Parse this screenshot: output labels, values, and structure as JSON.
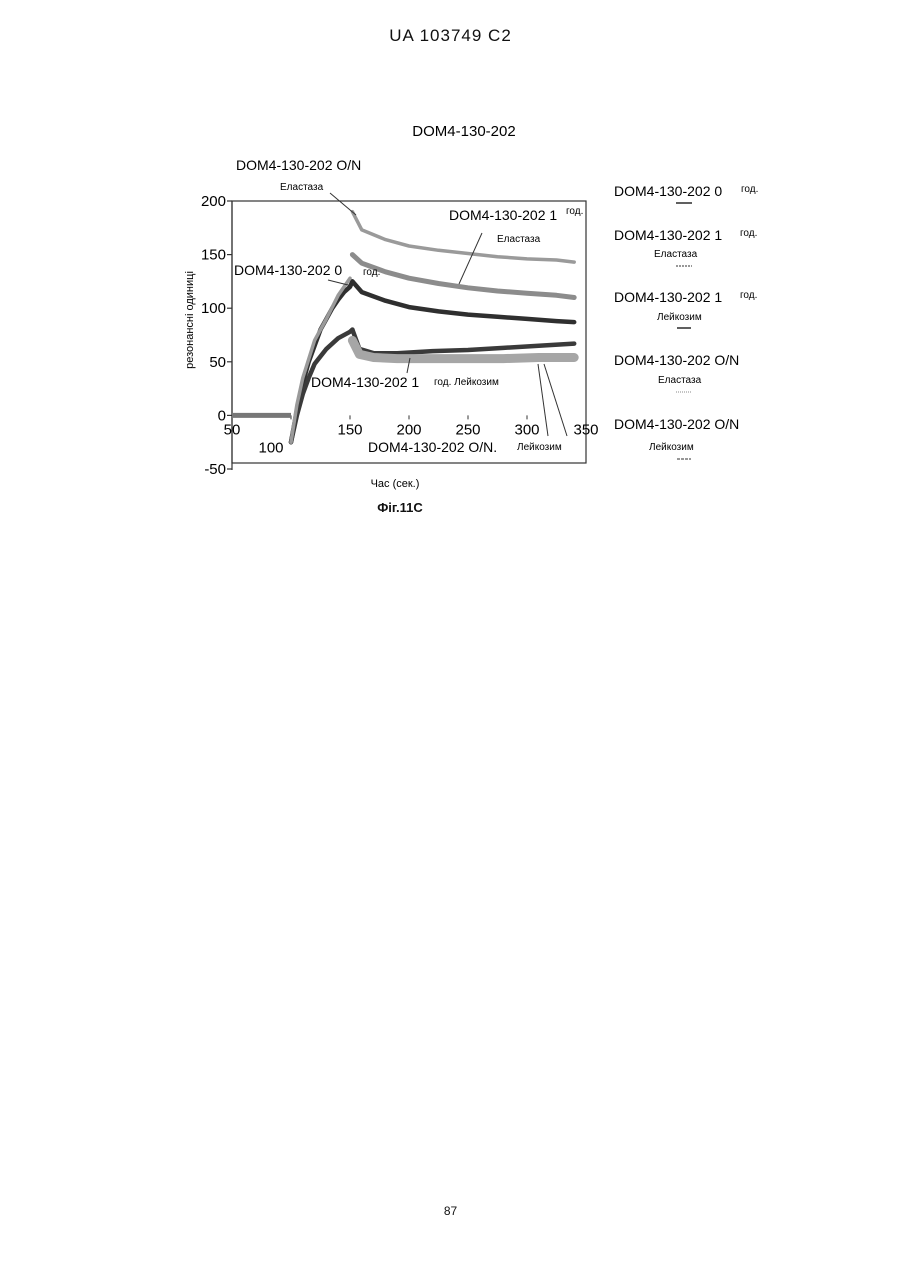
{
  "header": {
    "text": "UA   103749   C2"
  },
  "page_number": "87",
  "figure_caption": "Фіг.11С",
  "chart_data": {
    "type": "line",
    "title": "DOM4-130-202",
    "xlabel": "Час (сек.)",
    "ylabel": "резонансні одиниці",
    "xlim": [
      50,
      350
    ],
    "ylim": [
      -50,
      200
    ],
    "x_ticks": [
      "50",
      "100",
      "150",
      "200",
      "250",
      "300",
      "350"
    ],
    "y_ticks": [
      "200",
      "150",
      "100",
      "50",
      "0",
      "-50"
    ],
    "grid": false,
    "legend_position": "right",
    "colors": {
      "ink": "#2a2a2a",
      "band": "#8a8a8a",
      "dark": "#3a3a3a"
    },
    "series": [
      {
        "name": "DOM4-130-202 0 год. Еластаза",
        "x": [
          100,
          105,
          110,
          115,
          120,
          125,
          130,
          135,
          140,
          145,
          150,
          152
        ],
        "y": [
          -25,
          5,
          30,
          50,
          65,
          80,
          90,
          100,
          108,
          115,
          120,
          125
        ],
        "x2": [
          152,
          160,
          180,
          200,
          225,
          250,
          275,
          300,
          325,
          340
        ],
        "y2": [
          125,
          115,
          107,
          101,
          97,
          94,
          92,
          90,
          88,
          87
        ]
      },
      {
        "name": "DOM4-130-202 1 год. Еластаза",
        "x": [
          152,
          160,
          180,
          200,
          225,
          250,
          275,
          300,
          325,
          340
        ],
        "y": [
          150,
          142,
          134,
          128,
          123,
          119,
          116,
          114,
          112,
          110
        ]
      },
      {
        "name": "DOM4-130-202 1 год. Лейкозим",
        "x": [
          100,
          105,
          110,
          115,
          120,
          130,
          140,
          150,
          152
        ],
        "y": [
          -25,
          0,
          20,
          35,
          48,
          62,
          72,
          78,
          80
        ],
        "x2": [
          152,
          158,
          170,
          190,
          220,
          250,
          280,
          310,
          340
        ],
        "y2": [
          80,
          62,
          58,
          58,
          60,
          61,
          63,
          65,
          67
        ]
      },
      {
        "name": "DOM4-130-202 O/N Еластаза",
        "x": [
          100,
          105,
          110,
          120,
          130,
          140,
          150
        ],
        "y": [
          -25,
          10,
          35,
          70,
          90,
          112,
          128
        ],
        "x2": [
          152,
          160,
          180,
          200,
          225,
          250,
          275,
          300,
          325,
          340
        ],
        "y2": [
          190,
          173,
          164,
          158,
          154,
          151,
          148,
          146,
          145,
          143
        ]
      },
      {
        "name": "DOM4-130-202 O/N Лейкозим",
        "x": [
          152,
          158,
          170,
          190,
          220,
          250,
          280,
          310,
          340
        ],
        "y": [
          70,
          57,
          54,
          53,
          53,
          53,
          53,
          54,
          54
        ]
      }
    ],
    "baseline": {
      "x": [
        50,
        100
      ],
      "y": [
        0,
        0
      ]
    },
    "annotations": [
      {
        "text": "DOM4-130-202 O/N",
        "sub": "Еластаза"
      },
      {
        "text": "DOM4-130-202 1",
        "suffix": "год.",
        "sub": "Еластаза"
      },
      {
        "text": "DOM4-130-202 0",
        "suffix": "год."
      },
      {
        "text": "DOM4-130-202 1",
        "suffix": "год. Лейкозим"
      },
      {
        "text": "DOM4-130-202 O/N.",
        "sub": "Лейкозим"
      }
    ],
    "legend": [
      {
        "text": "DOM4-130-202 0",
        "suffix": "год.",
        "sub": ""
      },
      {
        "text": "DOM4-130-202 1",
        "suffix": "год.",
        "sub": "Еластаза"
      },
      {
        "text": "DOM4-130-202 1",
        "suffix": "год.",
        "sub": "Лейкозим"
      },
      {
        "text": "DOM4-130-202 O/N",
        "suffix": "",
        "sub": "Еластаза"
      },
      {
        "text": "DOM4-130-202 O/N",
        "suffix": "",
        "sub": "Лейкозим"
      }
    ]
  }
}
